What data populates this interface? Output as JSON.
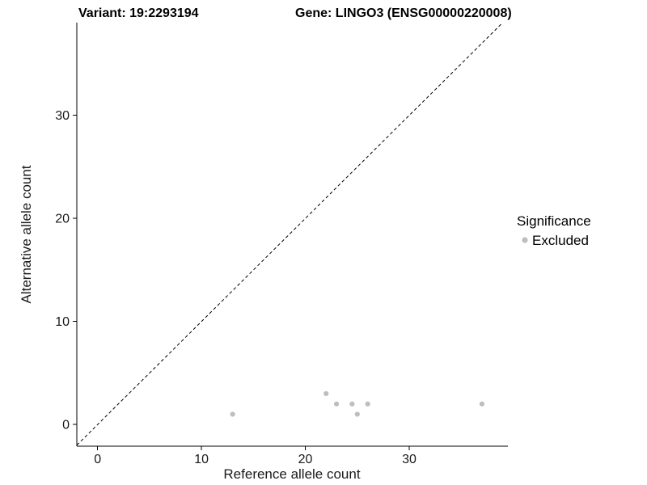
{
  "header": {
    "variant_title": "Variant: 19:2293194",
    "gene_title": "Gene: LINGO3 (ENSG00000220008)"
  },
  "chart_data": {
    "type": "scatter",
    "title": {
      "left": "Variant: 19:2293194",
      "right": "Gene: LINGO3 (ENSG00000220008)"
    },
    "xlabel": "Reference allele count",
    "ylabel": "Alternative allele count",
    "xlim": [
      -2,
      39.5
    ],
    "ylim": [
      -2.1,
      39
    ],
    "xticks": [
      0,
      10,
      20,
      30
    ],
    "yticks": [
      0,
      10,
      20,
      30
    ],
    "grid": false,
    "background": "#ffffff",
    "identity_line": {
      "style": "dashed",
      "slope": 1,
      "intercept": 0,
      "color": "#000000"
    },
    "series": [
      {
        "name": "Excluded",
        "color": "#bebebe",
        "marker": "circle",
        "points": [
          [
            13,
            1
          ],
          [
            22,
            3
          ],
          [
            23,
            2
          ],
          [
            24.5,
            2
          ],
          [
            25,
            1
          ],
          [
            26,
            2
          ],
          [
            37,
            2
          ]
        ]
      }
    ],
    "legend": {
      "title": "Significance",
      "position": "right",
      "items": [
        {
          "label": "Excluded",
          "color": "#bebebe"
        }
      ]
    }
  }
}
